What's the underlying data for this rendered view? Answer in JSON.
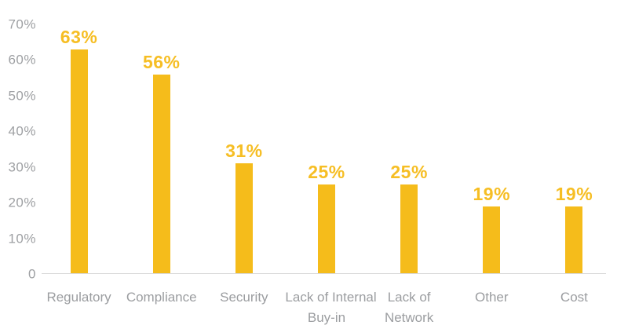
{
  "chart_data": {
    "type": "bar",
    "title": "",
    "xlabel": "",
    "ylabel": "",
    "categories": [
      "Regulatory",
      "Compliance",
      "Security",
      "Lack of Internal Buy-in",
      "Lack of Network",
      "Other",
      "Cost"
    ],
    "category_label_lines": [
      [
        "Regulatory"
      ],
      [
        "Compliance"
      ],
      [
        "Security"
      ],
      [
        "Lack of Internal",
        "Buy-in"
      ],
      [
        "Lack of",
        "Network"
      ],
      [
        "Other"
      ],
      [
        "Cost"
      ]
    ],
    "values": [
      63,
      56,
      31,
      25,
      25,
      19,
      19
    ],
    "value_labels": [
      "63%",
      "56%",
      "31%",
      "25%",
      "25%",
      "19%",
      "19%"
    ],
    "ylim": [
      0,
      70
    ],
    "y_ticks": [
      {
        "value": 0,
        "label": "0"
      },
      {
        "value": 10,
        "label": "10%"
      },
      {
        "value": 20,
        "label": "20%"
      },
      {
        "value": 30,
        "label": "30%"
      },
      {
        "value": 40,
        "label": "40%"
      },
      {
        "value": 50,
        "label": "50%"
      },
      {
        "value": 60,
        "label": "60%"
      },
      {
        "value": 70,
        "label": "70%"
      }
    ],
    "grid": false,
    "legend": false,
    "colors": {
      "bar": "#F5BC1B",
      "value_label": "#F6BE24",
      "tick_text": "#9EA0A3",
      "category_text": "#9B9DA0",
      "axis_line": "#D9D9D9",
      "background": "#FFFFFF"
    }
  }
}
